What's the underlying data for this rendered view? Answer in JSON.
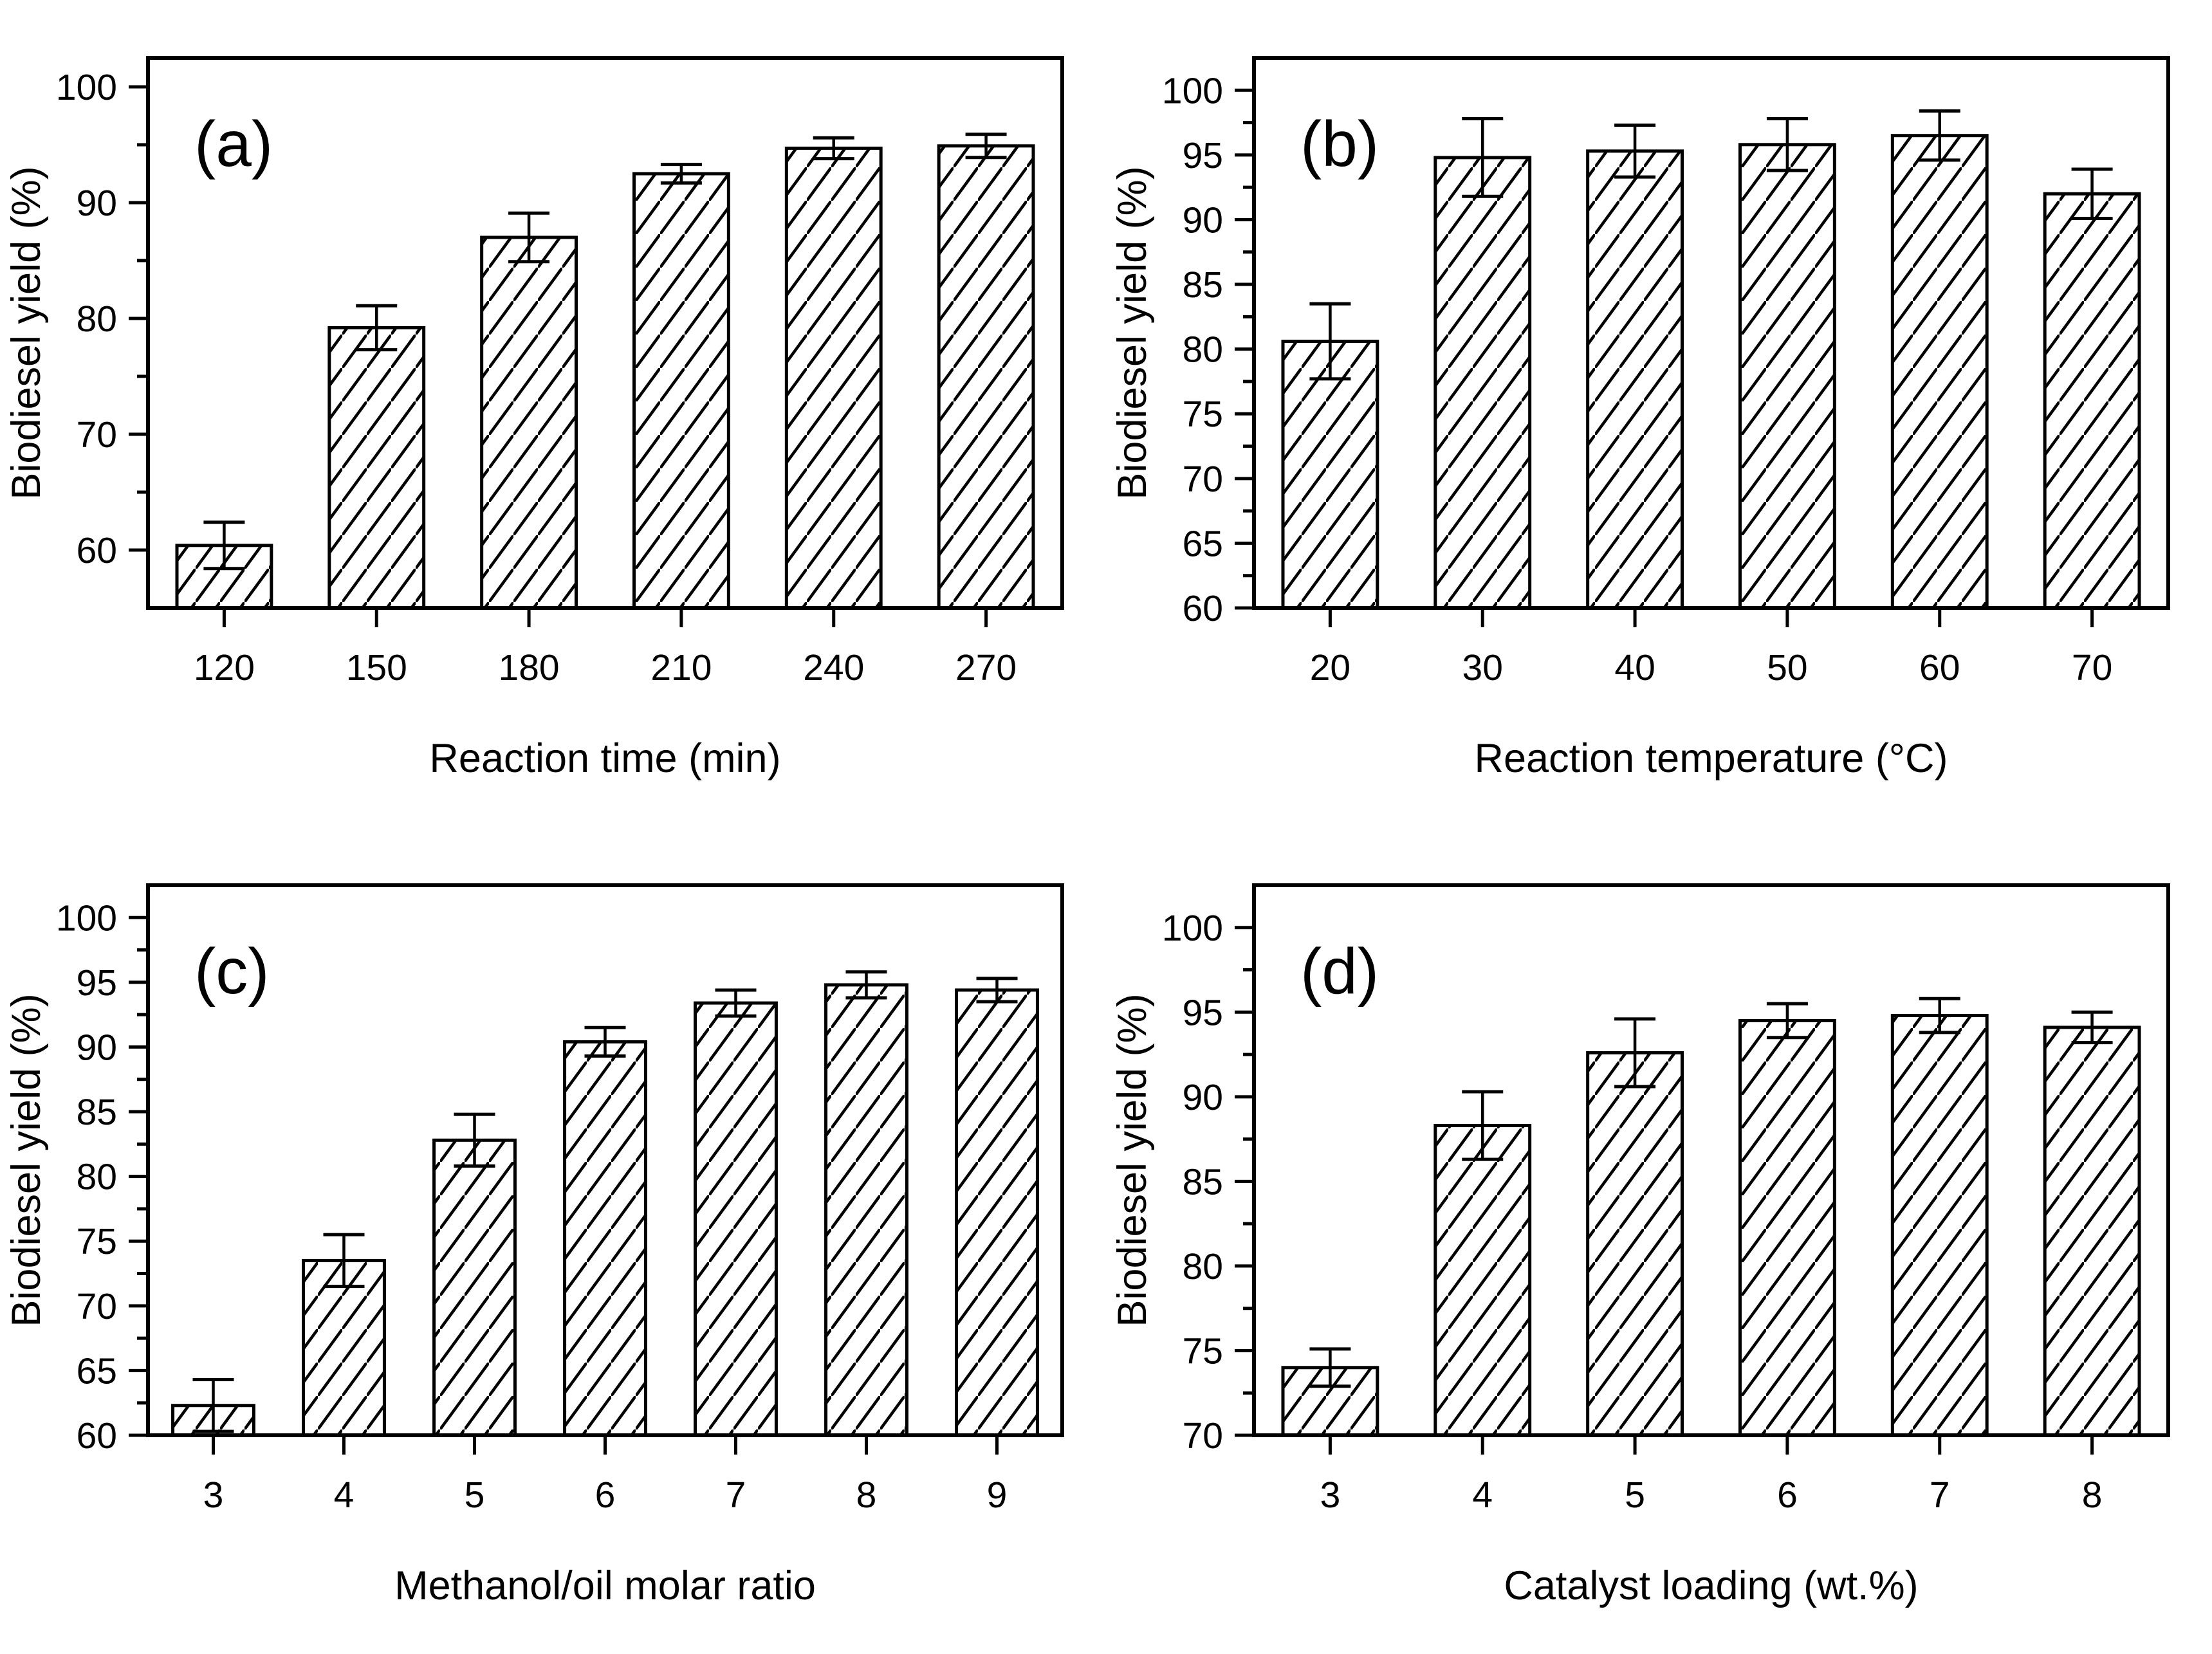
{
  "figure": {
    "background": "#ffffff",
    "ink_color": "#000000",
    "panel_count": 4
  },
  "chart_data": [
    {
      "type": "bar",
      "panel_label": "(a)",
      "xlabel": "Reaction time (min)",
      "ylabel": "Biodiesel yield (%)",
      "categories": [
        "120",
        "150",
        "180",
        "210",
        "240",
        "270"
      ],
      "values": [
        60.4,
        79.2,
        87.0,
        92.5,
        94.7,
        94.9
      ],
      "errors": [
        2.0,
        1.9,
        2.1,
        0.8,
        0.9,
        1.0
      ],
      "ylim": [
        55,
        102.5
      ],
      "ytick_label_step": 10,
      "ytick_minor_step": 5,
      "bar_style": "white-fill-diagonal-hatch",
      "bar_outline_color": "#000000",
      "grid": false,
      "legend": "none"
    },
    {
      "type": "bar",
      "panel_label": "(b)",
      "xlabel": "Reaction temperature (°C)",
      "ylabel": "Biodiesel yield (%)",
      "categories": [
        "20",
        "30",
        "40",
        "50",
        "60",
        "70"
      ],
      "values": [
        80.6,
        94.8,
        95.3,
        95.8,
        96.5,
        92.0
      ],
      "errors": [
        2.9,
        3.0,
        2.0,
        2.0,
        1.9,
        1.9
      ],
      "ylim": [
        60,
        102.5
      ],
      "ytick_label_step": 5,
      "ytick_minor_step": 2.5,
      "bar_style": "white-fill-diagonal-hatch",
      "bar_outline_color": "#000000",
      "grid": false,
      "legend": "none"
    },
    {
      "type": "bar",
      "panel_label": "(c)",
      "xlabel": "Methanol/oil molar ratio",
      "ylabel": "Biodiesel yield (%)",
      "categories": [
        "3",
        "4",
        "5",
        "6",
        "7",
        "8",
        "9"
      ],
      "values": [
        62.3,
        73.5,
        82.8,
        90.4,
        93.4,
        94.8,
        94.4
      ],
      "errors": [
        2.0,
        2.0,
        2.0,
        1.1,
        1.0,
        1.0,
        0.9
      ],
      "ylim": [
        60,
        102.5
      ],
      "ytick_label_step": 5,
      "ytick_minor_step": 2.5,
      "bar_style": "white-fill-diagonal-hatch",
      "bar_outline_color": "#000000",
      "grid": false,
      "legend": "none"
    },
    {
      "type": "bar",
      "panel_label": "(d)",
      "xlabel": "Catalyst loading (wt.%)",
      "ylabel": "Biodiesel yield (%)",
      "categories": [
        "3",
        "4",
        "5",
        "6",
        "7",
        "8"
      ],
      "values": [
        74.0,
        88.3,
        92.6,
        94.5,
        94.8,
        94.1
      ],
      "errors": [
        1.1,
        2.0,
        2.0,
        1.0,
        1.0,
        0.9
      ],
      "ylim": [
        70,
        102.5
      ],
      "ytick_label_step": 5,
      "ytick_minor_step": 2.5,
      "bar_style": "white-fill-diagonal-hatch",
      "bar_outline_color": "#000000",
      "grid": false,
      "legend": "none"
    }
  ]
}
